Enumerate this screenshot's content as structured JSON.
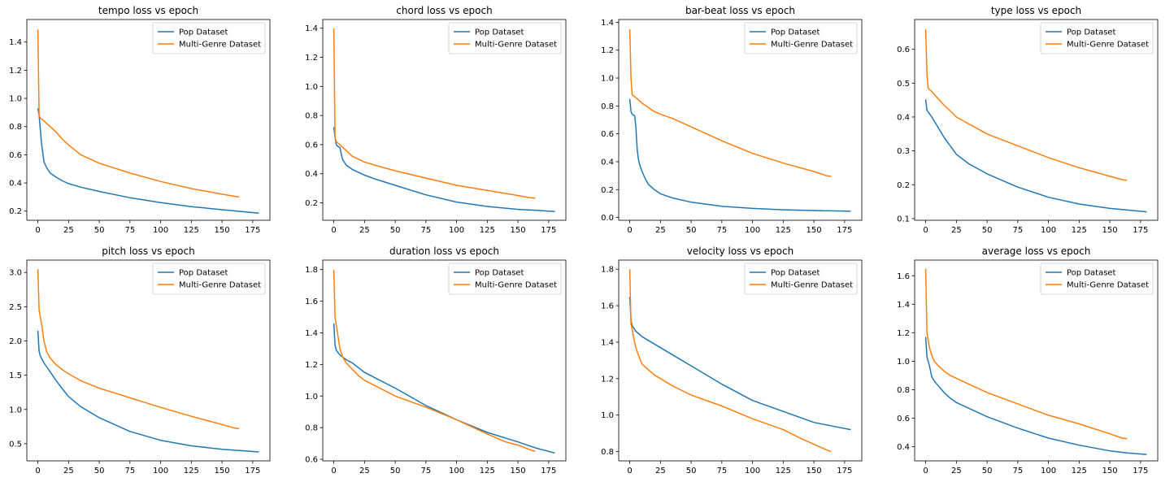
{
  "colors": {
    "pop": "#1f77b4",
    "multi": "#ff7f0e"
  },
  "legend": [
    "Pop Dataset",
    "Multi-Genre Dataset"
  ],
  "chart_data": [
    {
      "type": "line",
      "title": "tempo loss vs epoch",
      "xticks": [
        0,
        25,
        50,
        75,
        100,
        125,
        150,
        175
      ],
      "xlim": [
        -9,
        189
      ],
      "yticks": [
        0.2,
        0.4,
        0.6,
        0.8,
        1.0,
        1.2,
        1.4
      ],
      "ytick_labels": [
        "0.2",
        "0.4",
        "0.6",
        "0.8",
        "1.0",
        "1.2",
        "1.4"
      ],
      "ylim": [
        0.135,
        1.56
      ],
      "series": [
        {
          "name": "Pop Dataset",
          "x": [
            0,
            1,
            2,
            3,
            5,
            7,
            10,
            15,
            20,
            25,
            35,
            50,
            75,
            100,
            125,
            150,
            165,
            180
          ],
          "y": [
            0.93,
            0.88,
            0.78,
            0.68,
            0.55,
            0.51,
            0.47,
            0.44,
            0.415,
            0.395,
            0.37,
            0.34,
            0.295,
            0.26,
            0.232,
            0.21,
            0.198,
            0.185
          ]
        },
        {
          "name": "Multi-Genre Dataset",
          "x": [
            0,
            1,
            2,
            5,
            10,
            15,
            20,
            25,
            35,
            50,
            75,
            100,
            125,
            150,
            160,
            164
          ],
          "y": [
            1.49,
            0.88,
            0.86,
            0.84,
            0.8,
            0.76,
            0.71,
            0.67,
            0.6,
            0.54,
            0.47,
            0.41,
            0.36,
            0.32,
            0.305,
            0.3
          ]
        }
      ]
    },
    {
      "type": "line",
      "title": "chord loss vs epoch",
      "xticks": [
        0,
        25,
        50,
        75,
        100,
        125,
        150,
        175
      ],
      "xlim": [
        -9,
        189
      ],
      "yticks": [
        0.2,
        0.4,
        0.6,
        0.8,
        1.0,
        1.2,
        1.4
      ],
      "ytick_labels": [
        "0.2",
        "0.4",
        "0.6",
        "0.8",
        "1.0",
        "1.2",
        "1.4"
      ],
      "ylim": [
        0.08,
        1.46
      ],
      "series": [
        {
          "name": "Pop Dataset",
          "x": [
            0,
            1,
            2,
            3,
            5,
            7,
            10,
            15,
            20,
            25,
            35,
            50,
            75,
            100,
            125,
            150,
            165,
            180
          ],
          "y": [
            0.72,
            0.65,
            0.6,
            0.59,
            0.58,
            0.5,
            0.46,
            0.43,
            0.41,
            0.39,
            0.36,
            0.32,
            0.255,
            0.205,
            0.175,
            0.155,
            0.148,
            0.14
          ]
        },
        {
          "name": "Multi-Genre Dataset",
          "x": [
            0,
            1,
            2,
            5,
            10,
            15,
            20,
            25,
            35,
            50,
            75,
            100,
            125,
            150,
            160,
            164
          ],
          "y": [
            1.4,
            0.65,
            0.62,
            0.6,
            0.56,
            0.52,
            0.5,
            0.48,
            0.455,
            0.42,
            0.37,
            0.32,
            0.285,
            0.25,
            0.235,
            0.232
          ]
        }
      ]
    },
    {
      "type": "line",
      "title": "bar-beat loss vs epoch",
      "xticks": [
        0,
        25,
        50,
        75,
        100,
        125,
        150,
        175
      ],
      "xlim": [
        -9,
        189
      ],
      "yticks": [
        0.0,
        0.2,
        0.4,
        0.6,
        0.8,
        1.0,
        1.2,
        1.4
      ],
      "ytick_labels": [
        "0.0",
        "0.2",
        "0.4",
        "0.6",
        "0.8",
        "1.0",
        "1.2",
        "1.4"
      ],
      "ylim": [
        -0.02,
        1.42
      ],
      "series": [
        {
          "name": "Pop Dataset",
          "x": [
            0,
            1,
            2,
            4,
            5,
            6,
            7,
            8,
            10,
            12,
            15,
            20,
            25,
            35,
            50,
            75,
            100,
            125,
            150,
            180
          ],
          "y": [
            0.85,
            0.76,
            0.74,
            0.73,
            0.65,
            0.49,
            0.42,
            0.38,
            0.33,
            0.29,
            0.24,
            0.2,
            0.17,
            0.14,
            0.11,
            0.08,
            0.065,
            0.055,
            0.05,
            0.045
          ]
        },
        {
          "name": "Multi-Genre Dataset",
          "x": [
            0,
            1,
            2,
            5,
            10,
            15,
            20,
            25,
            35,
            50,
            75,
            100,
            125,
            150,
            160,
            164
          ],
          "y": [
            1.35,
            1.0,
            0.88,
            0.86,
            0.82,
            0.79,
            0.76,
            0.74,
            0.71,
            0.65,
            0.55,
            0.46,
            0.39,
            0.33,
            0.3,
            0.295
          ]
        }
      ]
    },
    {
      "type": "line",
      "title": "type loss vs epoch",
      "xticks": [
        0,
        25,
        50,
        75,
        100,
        125,
        150,
        175
      ],
      "xlim": [
        -9,
        189
      ],
      "yticks": [
        0.1,
        0.2,
        0.3,
        0.4,
        0.5,
        0.6
      ],
      "ytick_labels": [
        "0.1",
        "0.2",
        "0.3",
        "0.4",
        "0.5",
        "0.6"
      ],
      "ylim": [
        0.095,
        0.688
      ],
      "series": [
        {
          "name": "Pop Dataset",
          "x": [
            0,
            1,
            2,
            5,
            10,
            15,
            20,
            25,
            35,
            50,
            75,
            100,
            125,
            150,
            165,
            180
          ],
          "y": [
            0.452,
            0.42,
            0.415,
            0.4,
            0.37,
            0.34,
            0.315,
            0.29,
            0.262,
            0.232,
            0.193,
            0.163,
            0.143,
            0.13,
            0.125,
            0.12
          ]
        },
        {
          "name": "Multi-Genre Dataset",
          "x": [
            0,
            1,
            2,
            5,
            10,
            15,
            20,
            25,
            35,
            50,
            75,
            100,
            125,
            150,
            160,
            164
          ],
          "y": [
            0.66,
            0.53,
            0.485,
            0.475,
            0.455,
            0.435,
            0.418,
            0.4,
            0.38,
            0.35,
            0.315,
            0.28,
            0.25,
            0.225,
            0.215,
            0.213
          ]
        }
      ]
    },
    {
      "type": "line",
      "title": "pitch loss vs epoch",
      "xticks": [
        0,
        25,
        50,
        75,
        100,
        125,
        150,
        175
      ],
      "xlim": [
        -9,
        189
      ],
      "yticks": [
        0.5,
        1.0,
        1.5,
        2.0,
        2.5,
        3.0
      ],
      "ytick_labels": [
        "0.5",
        "1.0",
        "1.5",
        "2.0",
        "2.5",
        "3.0"
      ],
      "ylim": [
        0.25,
        3.18
      ],
      "series": [
        {
          "name": "Pop Dataset",
          "x": [
            0,
            1,
            2,
            5,
            10,
            15,
            20,
            25,
            35,
            50,
            75,
            100,
            125,
            150,
            165,
            180
          ],
          "y": [
            2.15,
            1.85,
            1.78,
            1.68,
            1.55,
            1.42,
            1.3,
            1.19,
            1.04,
            0.88,
            0.68,
            0.55,
            0.47,
            0.42,
            0.4,
            0.38
          ]
        },
        {
          "name": "Multi-Genre Dataset",
          "x": [
            0,
            1,
            2,
            3,
            5,
            7,
            10,
            15,
            20,
            25,
            35,
            50,
            75,
            100,
            125,
            150,
            160,
            164
          ],
          "y": [
            3.05,
            2.45,
            2.35,
            2.25,
            2.0,
            1.85,
            1.75,
            1.65,
            1.58,
            1.52,
            1.42,
            1.31,
            1.17,
            1.03,
            0.9,
            0.78,
            0.73,
            0.72
          ]
        }
      ]
    },
    {
      "type": "line",
      "title": "duration loss vs epoch",
      "xticks": [
        0,
        25,
        50,
        75,
        100,
        125,
        150,
        175
      ],
      "xlim": [
        -9,
        189
      ],
      "yticks": [
        0.6,
        0.8,
        1.0,
        1.2,
        1.4,
        1.6,
        1.8
      ],
      "ytick_labels": [
        "0.6",
        "0.8",
        "1.0",
        "1.2",
        "1.4",
        "1.6",
        "1.8"
      ],
      "ylim": [
        0.59,
        1.86
      ],
      "series": [
        {
          "name": "Pop Dataset",
          "x": [
            0,
            1,
            2,
            5,
            10,
            15,
            20,
            25,
            35,
            50,
            75,
            100,
            125,
            150,
            165,
            180
          ],
          "y": [
            1.46,
            1.32,
            1.29,
            1.26,
            1.23,
            1.21,
            1.18,
            1.15,
            1.11,
            1.05,
            0.94,
            0.85,
            0.77,
            0.71,
            0.67,
            0.64
          ]
        },
        {
          "name": "Multi-Genre Dataset",
          "x": [
            0,
            1,
            2,
            5,
            7,
            10,
            15,
            20,
            25,
            35,
            50,
            75,
            100,
            125,
            140,
            150,
            160,
            164
          ],
          "y": [
            1.8,
            1.5,
            1.45,
            1.3,
            1.25,
            1.21,
            1.17,
            1.13,
            1.1,
            1.06,
            1.0,
            0.93,
            0.85,
            0.76,
            0.71,
            0.69,
            0.66,
            0.65
          ]
        }
      ]
    },
    {
      "type": "line",
      "title": "velocity loss vs epoch",
      "xticks": [
        0,
        25,
        50,
        75,
        100,
        125,
        150,
        175
      ],
      "xlim": [
        -9,
        189
      ],
      "yticks": [
        0.8,
        1.0,
        1.2,
        1.4,
        1.6,
        1.8
      ],
      "ytick_labels": [
        "0.8",
        "1.0",
        "1.2",
        "1.4",
        "1.6",
        "1.8"
      ],
      "ylim": [
        0.749,
        1.85
      ],
      "series": [
        {
          "name": "Pop Dataset",
          "x": [
            0,
            1,
            2,
            5,
            10,
            15,
            20,
            25,
            35,
            50,
            75,
            100,
            125,
            150,
            165,
            180
          ],
          "y": [
            1.65,
            1.52,
            1.49,
            1.46,
            1.43,
            1.41,
            1.39,
            1.37,
            1.33,
            1.27,
            1.17,
            1.08,
            1.02,
            0.96,
            0.94,
            0.92
          ]
        },
        {
          "name": "Multi-Genre Dataset",
          "x": [
            0,
            1,
            2,
            3,
            5,
            7,
            10,
            15,
            20,
            25,
            35,
            50,
            75,
            100,
            125,
            140,
            150,
            160,
            164
          ],
          "y": [
            1.8,
            1.5,
            1.47,
            1.43,
            1.37,
            1.33,
            1.28,
            1.25,
            1.22,
            1.2,
            1.16,
            1.11,
            1.05,
            0.98,
            0.92,
            0.87,
            0.84,
            0.81,
            0.8
          ]
        }
      ]
    },
    {
      "type": "line",
      "title": "average loss vs epoch",
      "xticks": [
        0,
        25,
        50,
        75,
        100,
        125,
        150,
        175
      ],
      "xlim": [
        -9,
        189
      ],
      "yticks": [
        0.4,
        0.6,
        0.8,
        1.0,
        1.2,
        1.4,
        1.6
      ],
      "ytick_labels": [
        "0.4",
        "0.6",
        "0.8",
        "1.0",
        "1.2",
        "1.4",
        "1.6"
      ],
      "ylim": [
        0.3,
        1.71
      ],
      "series": [
        {
          "name": "Pop Dataset",
          "x": [
            0,
            1,
            2,
            3,
            5,
            7,
            10,
            15,
            20,
            25,
            35,
            50,
            75,
            100,
            125,
            150,
            165,
            180
          ],
          "y": [
            1.17,
            1.03,
            1.0,
            0.97,
            0.89,
            0.86,
            0.83,
            0.78,
            0.74,
            0.71,
            0.67,
            0.61,
            0.53,
            0.46,
            0.41,
            0.37,
            0.355,
            0.345
          ]
        },
        {
          "name": "Multi-Genre Dataset",
          "x": [
            0,
            1,
            2,
            3,
            5,
            7,
            10,
            15,
            20,
            25,
            35,
            50,
            75,
            100,
            125,
            150,
            160,
            164
          ],
          "y": [
            1.65,
            1.2,
            1.15,
            1.1,
            1.04,
            1.0,
            0.97,
            0.93,
            0.9,
            0.88,
            0.84,
            0.78,
            0.7,
            0.62,
            0.56,
            0.49,
            0.46,
            0.455
          ]
        }
      ]
    }
  ]
}
